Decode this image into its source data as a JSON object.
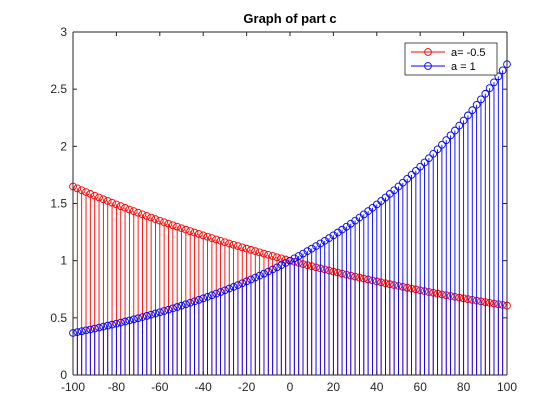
{
  "figure": {
    "background": "#ffffff",
    "axes_color": "#262626"
  },
  "chart_data": {
    "type": "stem",
    "title": "Graph of part c",
    "xlabel": "",
    "ylabel": "",
    "xlim": [
      -100,
      100
    ],
    "ylim": [
      0,
      3
    ],
    "xticks": [
      -100,
      -80,
      -60,
      -40,
      -20,
      0,
      20,
      40,
      60,
      80,
      100
    ],
    "yticks": [
      0,
      0.5,
      1,
      1.5,
      2,
      2.5,
      3
    ],
    "xtick_labels": [
      "-100",
      "-80",
      "-60",
      "-40",
      "-20",
      "0",
      "20",
      "40",
      "60",
      "80",
      "100"
    ],
    "ytick_labels": [
      "0",
      "0.5",
      "1",
      "1.5",
      "2",
      "2.5",
      "3"
    ],
    "grid": false,
    "legend_position": "top-right",
    "x_range": {
      "start": -100,
      "end": 100,
      "step": 2
    },
    "series": [
      {
        "name": "a= -0.5",
        "color": "#ff0000",
        "marker": "circle-open",
        "y_rule": "exp(-0.5*x/100)",
        "y_at_x_min": 1.6487,
        "y_at_x_0": 1.0,
        "y_at_x_max": 0.6065
      },
      {
        "name": "a = 1",
        "color": "#0000ff",
        "marker": "circle-open",
        "y_rule": "exp(x/100)",
        "y_at_x_min": 0.3679,
        "y_at_x_0": 1.0,
        "y_at_x_max": 2.7183
      }
    ]
  }
}
